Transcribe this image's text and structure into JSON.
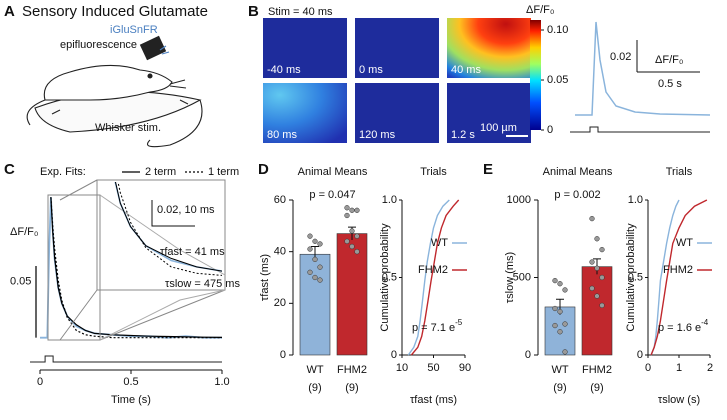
{
  "panel_a": {
    "letter": "A",
    "title": "Sensory Induced Glutamate",
    "sensor": "iGluSnFR",
    "method": "epifluorescence",
    "stim_label": "Whisker stim."
  },
  "panel_b": {
    "letter": "B",
    "stim": "Stim = 40 ms",
    "frames": [
      "-40 ms",
      "0 ms",
      "40 ms",
      "80 ms",
      "120 ms",
      "1.2 s"
    ],
    "scale_bar": "100 µm",
    "colorbar_title": "ΔF/F₀",
    "colorbar_lim": [
      0,
      0.11
    ],
    "colorbar_ticks": [
      {
        "value": 0.1,
        "label": "0.10"
      },
      0.05,
      0
    ],
    "trace_scale_y": 0.02,
    "trace_scale_unit": "ΔF/F₀",
    "trace_scale_x": "0.5 s"
  },
  "chart_data": [
    {
      "type": "line",
      "panel_label": "C",
      "legend_title": "Exp. Fits:",
      "x": [
        0,
        0.02,
        0.04,
        0.05,
        0.06,
        0.07,
        0.08,
        0.1,
        0.12,
        0.15,
        0.2,
        0.25,
        0.3,
        0.4,
        0.5,
        0.6,
        0.7,
        0.8,
        0.9,
        1.0
      ],
      "series": [
        {
          "color": "#8ab4dc",
          "style": "solid",
          "values": [
            0,
            0,
            0,
            0.06,
            0.098,
            0.075,
            0.055,
            0.035,
            0.024,
            0.015,
            0.008,
            0.005,
            0.003,
            0.002,
            0.001,
            0.001,
            0,
            0.001,
            0,
            0
          ]
        },
        {
          "name": "2 term",
          "color": "#000000",
          "style": "solid",
          "values": [
            null,
            null,
            null,
            null,
            0.098,
            0.074,
            0.056,
            0.035,
            0.024,
            0.015,
            0.009,
            0.005,
            0.003,
            0.002,
            0.0015,
            0.001,
            0.0008,
            0.0005,
            0.0003,
            0.0002
          ]
        },
        {
          "name": "1 term",
          "color": "#000000",
          "style": "dotted",
          "values": [
            null,
            null,
            null,
            null,
            0.098,
            0.078,
            0.062,
            0.04,
            0.026,
            0.014,
            0.005,
            0.002,
            0.001,
            0,
            0,
            0,
            0,
            0,
            0,
            0
          ]
        }
      ],
      "xlim": [
        0,
        1
      ],
      "xticks": [
        0,
        0.5,
        {
          "value": 1,
          "label": "1.0"
        }
      ],
      "xlabel": "Time (s)",
      "ylim": [
        -0.01,
        0.11
      ],
      "ylabel": "ΔF/F₀",
      "scale_bar": 0.05,
      "annotations": [
        "τfast = 41 ms",
        "τslow = 475 ms"
      ],
      "inset_scale": "0.02, 10 ms"
    },
    {
      "type": "bar",
      "panel_label": "D",
      "title": "Animal Means",
      "categories": [
        "WT",
        "FHM2"
      ],
      "n_labels": [
        "(9)",
        "(9)"
      ],
      "values": [
        39,
        47
      ],
      "errors": [
        3,
        2.5
      ],
      "colors": [
        "#8fb3d9",
        "#c0282d"
      ],
      "points": [
        [
          46,
          44,
          43,
          41,
          37,
          34,
          32,
          30,
          29
        ],
        [
          57,
          56,
          56,
          54,
          48,
          46,
          44,
          42,
          40
        ]
      ],
      "ylim": [
        0,
        60
      ],
      "yticks": [
        0,
        20,
        40,
        60
      ],
      "ylabel": "τfast (ms)",
      "annotation": "p = 0.047"
    },
    {
      "type": "cdf",
      "title": "Trials",
      "series": [
        {
          "name": "WT",
          "color": "#8ab4dc",
          "x": [
            18,
            25,
            30,
            33,
            36,
            39,
            42,
            46,
            50,
            55,
            62,
            70
          ],
          "values": [
            0,
            0.05,
            0.12,
            0.22,
            0.35,
            0.48,
            0.6,
            0.72,
            0.82,
            0.9,
            0.96,
            1
          ]
        },
        {
          "name": "FHM2",
          "color": "#c0282d",
          "x": [
            22,
            30,
            35,
            39,
            43,
            47,
            51,
            55,
            60,
            66,
            75,
            82
          ],
          "values": [
            0,
            0.05,
            0.12,
            0.22,
            0.35,
            0.48,
            0.6,
            0.72,
            0.82,
            0.9,
            0.96,
            1
          ]
        }
      ],
      "xlim": [
        10,
        90
      ],
      "xticks": [
        10,
        50,
        90
      ],
      "xlabel": "τfast (ms)",
      "ylim": [
        0,
        1
      ],
      "yticks": [
        0,
        0.5,
        {
          "value": 1,
          "label": "1.0"
        }
      ],
      "ylabel": "Cumulative probability",
      "p_text": "p = 7.1 e",
      "p_exponent": "-5"
    },
    {
      "type": "bar",
      "panel_label": "E",
      "title": "Animal Means",
      "categories": [
        "WT",
        "FHM2"
      ],
      "n_labels": [
        "(9)",
        "(9)"
      ],
      "values": [
        310,
        570
      ],
      "errors": [
        50,
        50
      ],
      "colors": [
        "#8fb3d9",
        "#c0282d"
      ],
      "points": [
        [
          480,
          460,
          420,
          300,
          280,
          200,
          190,
          150,
          20
        ],
        [
          880,
          750,
          680,
          600,
          560,
          500,
          430,
          380,
          320
        ]
      ],
      "ylim": [
        0,
        1000
      ],
      "yticks": [
        0,
        500,
        1000
      ],
      "ylabel": "τslow (ms)",
      "annotation": "p = 0.002"
    },
    {
      "type": "cdf",
      "title": "Trials",
      "series": [
        {
          "name": "WT",
          "color": "#8ab4dc",
          "x": [
            0.1,
            0.2,
            0.25,
            0.3,
            0.35,
            0.4,
            0.5,
            0.6,
            0.7,
            0.8,
            0.9,
            1.0
          ],
          "values": [
            0,
            0.05,
            0.12,
            0.22,
            0.35,
            0.48,
            0.6,
            0.72,
            0.82,
            0.9,
            0.96,
            1
          ]
        },
        {
          "name": "FHM2",
          "color": "#c0282d",
          "x": [
            0.1,
            0.2,
            0.3,
            0.4,
            0.5,
            0.6,
            0.7,
            0.8,
            1.0,
            1.2,
            1.5,
            1.9
          ],
          "values": [
            0,
            0.05,
            0.12,
            0.22,
            0.35,
            0.48,
            0.6,
            0.72,
            0.82,
            0.9,
            0.96,
            1
          ]
        }
      ],
      "xlim": [
        0,
        2
      ],
      "xticks": [
        0,
        1,
        2
      ],
      "xlabel": "τslow (s)",
      "ylim": [
        0,
        1
      ],
      "yticks": [
        0,
        0.5,
        {
          "value": 1,
          "label": "1.0"
        }
      ],
      "ylabel": "Cumulative probability",
      "p_text": "p = 1.6 e",
      "p_exponent": "-4"
    }
  ]
}
